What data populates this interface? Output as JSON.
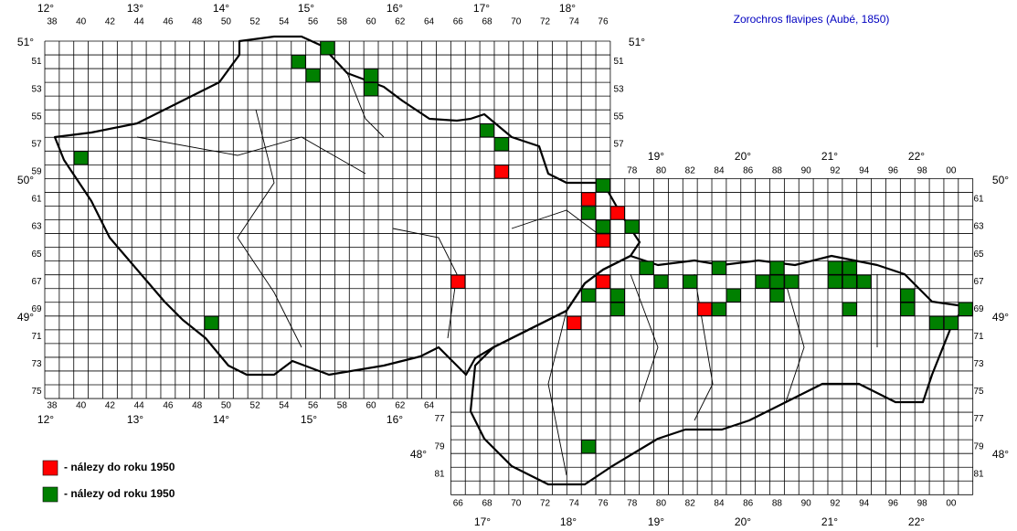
{
  "title": "Zorochros flavipes (Aubé, 1850)",
  "columns": {
    "czech_top": [
      "38",
      "40",
      "42",
      "44",
      "46",
      "48",
      "50",
      "52",
      "54",
      "56",
      "58",
      "60",
      "62",
      "64",
      "66",
      "68",
      "70",
      "72",
      "74",
      "76"
    ],
    "czech_bottom": [
      "38",
      "40",
      "42",
      "44",
      "46",
      "48",
      "50",
      "52",
      "54",
      "56",
      "58",
      "60",
      "62",
      "64"
    ],
    "slovak_top": [
      "78",
      "80",
      "82",
      "84",
      "86",
      "88",
      "90",
      "92",
      "94",
      "96",
      "98",
      "00"
    ],
    "slovak_bottom": [
      "66",
      "68",
      "70",
      "72",
      "74",
      "76",
      "78",
      "80",
      "82",
      "84",
      "86",
      "88",
      "90",
      "92",
      "94",
      "96",
      "98",
      "00"
    ]
  },
  "rows": {
    "czech_left": [
      "51",
      "53",
      "55",
      "57",
      "59",
      "61",
      "63",
      "65",
      "67",
      "69",
      "71",
      "73",
      "75"
    ],
    "czech_right": [
      "51",
      "53",
      "55",
      "57"
    ],
    "slovak_left": [
      "77",
      "79",
      "81"
    ],
    "slovak_right": [
      "61",
      "63",
      "65",
      "67",
      "69",
      "71",
      "73",
      "75",
      "77",
      "79",
      "81"
    ]
  },
  "longitudes": {
    "czech_top": [
      "12°",
      "13°",
      "14°",
      "15°",
      "16°",
      "17°",
      "18°"
    ],
    "czech_bottom": [
      "12°",
      "13°",
      "14°",
      "15°",
      "16°"
    ],
    "slovak_top": [
      "19°",
      "20°",
      "21°",
      "22°"
    ],
    "slovak_bottom": [
      "17°",
      "18°",
      "19°",
      "20°",
      "21°",
      "22°"
    ]
  },
  "latitudes": [
    "51°",
    "51°",
    "50°",
    "50°",
    "49°",
    "49°",
    "48°",
    "48°"
  ],
  "finds": [
    {
      "label": "- nálezy do roku 1950",
      "color": "#ff0000",
      "squares": [
        [
          69,
          59
        ],
        [
          75,
          61
        ],
        [
          77,
          62
        ],
        [
          76,
          64
        ],
        [
          66,
          67
        ],
        [
          76,
          67
        ],
        [
          74,
          70
        ],
        [
          83,
          69
        ]
      ]
    },
    {
      "label": "- nálezy od roku 1950",
      "color": "#008000",
      "squares": [
        [
          55,
          51
        ],
        [
          57,
          50
        ],
        [
          56,
          52
        ],
        [
          60,
          52
        ],
        [
          60,
          53
        ],
        [
          40,
          58
        ],
        [
          68,
          56
        ],
        [
          69,
          57
        ],
        [
          76,
          60
        ],
        [
          75,
          62
        ],
        [
          76,
          63
        ],
        [
          78,
          63
        ],
        [
          79,
          66
        ],
        [
          80,
          67
        ],
        [
          82,
          67
        ],
        [
          84,
          66
        ],
        [
          84,
          69
        ],
        [
          85,
          68
        ],
        [
          87,
          67
        ],
        [
          88,
          66
        ],
        [
          88,
          67
        ],
        [
          88,
          68
        ],
        [
          89,
          67
        ],
        [
          92,
          66
        ],
        [
          92,
          67
        ],
        [
          93,
          66
        ],
        [
          93,
          67
        ],
        [
          94,
          67
        ],
        [
          93,
          69
        ],
        [
          97,
          68
        ],
        [
          97,
          69
        ],
        [
          99,
          70
        ],
        [
          100,
          70
        ],
        [
          101,
          69
        ],
        [
          75,
          68
        ],
        [
          77,
          68
        ],
        [
          77,
          69
        ],
        [
          75,
          79
        ],
        [
          49,
          70
        ]
      ]
    }
  ]
}
